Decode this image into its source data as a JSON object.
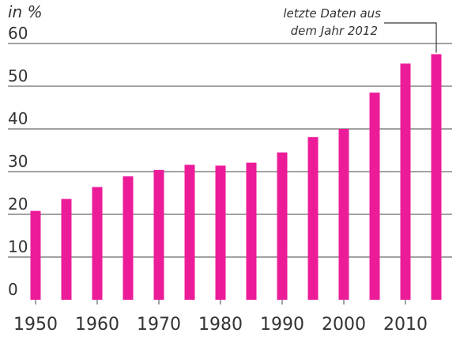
{
  "chart_data": {
    "type": "bar",
    "ylabel": "in %",
    "ylim": [
      0,
      60
    ],
    "yticks": [
      "0",
      "10",
      "20",
      "30",
      "40",
      "50",
      "60"
    ],
    "xticks": [
      "1950",
      "1960",
      "1970",
      "1980",
      "1990",
      "2000",
      "2010"
    ],
    "grid": true,
    "legend": "none",
    "x": [
      1950,
      1955,
      1960,
      1965,
      1970,
      1975,
      1980,
      1985,
      1990,
      1995,
      2000,
      2005,
      2010,
      2015
    ],
    "values": [
      20.8,
      23.6,
      26.4,
      28.9,
      30.4,
      31.6,
      31.4,
      32.1,
      34.5,
      38.1,
      40.0,
      48.5,
      55.3,
      57.5
    ],
    "bar_color": "#EC1C99",
    "annotation": {
      "lines": [
        "letzte Daten aus",
        "dem Jahr 2012"
      ],
      "target_index": 13
    }
  }
}
